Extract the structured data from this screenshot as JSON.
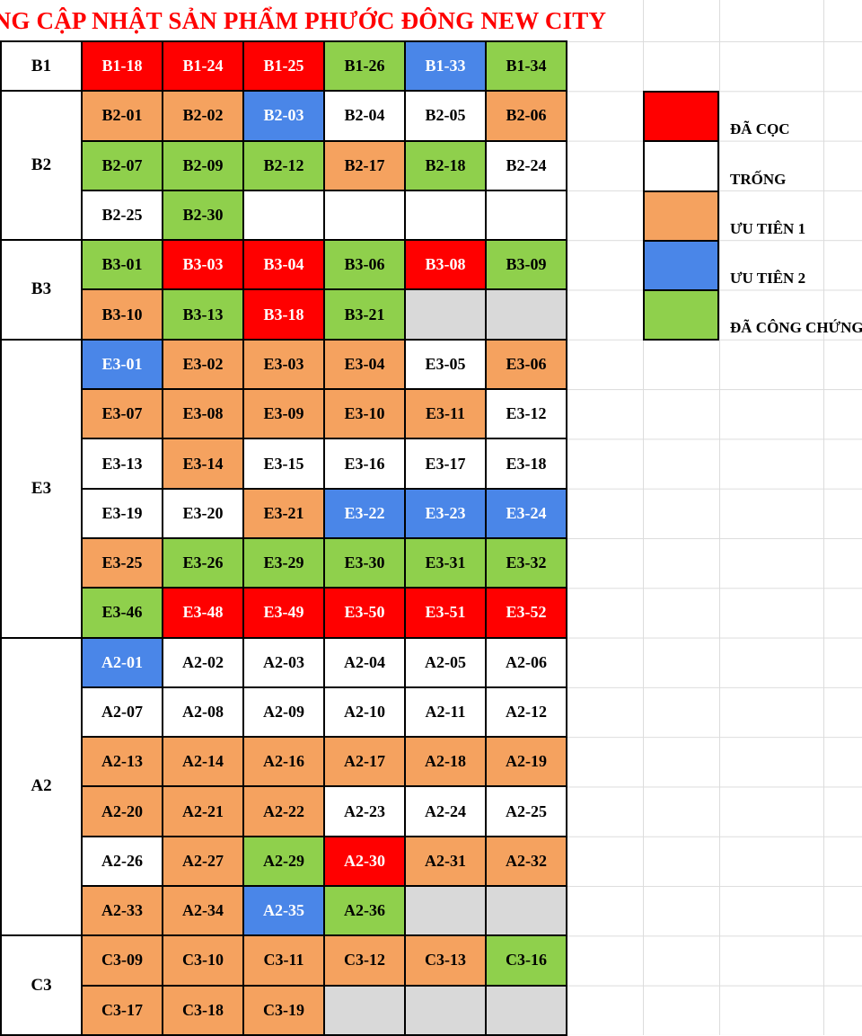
{
  "title": "BẢNG CẬP NHẬT SẢN PHẨM PHƯỚC ĐÔNG NEW CITY",
  "colors": {
    "title": "#FF0000",
    "gridline": "#DCDCDC",
    "table_border": "#000000"
  },
  "statuses": {
    "da_coc": {
      "label": "ĐÃ CỌC",
      "color": "#FF0000",
      "text": "#FFFFFF"
    },
    "trong": {
      "label": "TRỐNG",
      "color": "#FFFFFF",
      "text": "#000000"
    },
    "uu_tien_1": {
      "label": "ƯU TIÊN 1",
      "color": "#F5A25F",
      "text": "#000000"
    },
    "uu_tien_2": {
      "label": "ƯU TIÊN 2",
      "color": "#4A86E8",
      "text": "#FFFFFF"
    },
    "da_cong_chung": {
      "label": "ĐÃ CÔNG CHỨNG",
      "color": "#8FD04C",
      "text": "#000000"
    },
    "na": {
      "label": "",
      "color": "#D9D9D9",
      "text": "#000000"
    }
  },
  "legend": {
    "items": [
      {
        "status": "da_coc",
        "label": "ĐÃ CỌC"
      },
      {
        "status": "trong",
        "label": "TRỐNG"
      },
      {
        "status": "uu_tien_1",
        "label": "ƯU TIÊN 1"
      },
      {
        "status": "uu_tien_2",
        "label": "ƯU TIÊN 2"
      },
      {
        "status": "da_cong_chung",
        "label": "ĐÃ CÔNG CHỨNG"
      }
    ]
  },
  "sections": [
    {
      "name": "B1",
      "rows": [
        [
          {
            "label": "B1-18",
            "status": "da_coc"
          },
          {
            "label": "B1-24",
            "status": "da_coc"
          },
          {
            "label": "B1-25",
            "status": "da_coc"
          },
          {
            "label": "B1-26",
            "status": "da_cong_chung"
          },
          {
            "label": "B1-33",
            "status": "uu_tien_2"
          },
          {
            "label": "B1-34",
            "status": "da_cong_chung"
          }
        ]
      ]
    },
    {
      "name": "B2",
      "rows": [
        [
          {
            "label": "B2-01",
            "status": "uu_tien_1"
          },
          {
            "label": "B2-02",
            "status": "uu_tien_1"
          },
          {
            "label": "B2-03",
            "status": "uu_tien_2"
          },
          {
            "label": "B2-04",
            "status": "trong"
          },
          {
            "label": "B2-05",
            "status": "trong"
          },
          {
            "label": "B2-06",
            "status": "uu_tien_1"
          }
        ],
        [
          {
            "label": "B2-07",
            "status": "da_cong_chung"
          },
          {
            "label": "B2-09",
            "status": "da_cong_chung"
          },
          {
            "label": "B2-12",
            "status": "da_cong_chung"
          },
          {
            "label": "B2-17",
            "status": "uu_tien_1"
          },
          {
            "label": "B2-18",
            "status": "da_cong_chung"
          },
          {
            "label": "B2-24",
            "status": "trong"
          }
        ],
        [
          {
            "label": "B2-25",
            "status": "trong"
          },
          {
            "label": "B2-30",
            "status": "da_cong_chung"
          },
          {
            "label": "",
            "status": "trong"
          },
          {
            "label": "",
            "status": "trong"
          },
          {
            "label": "",
            "status": "trong"
          },
          {
            "label": "",
            "status": "trong"
          }
        ]
      ]
    },
    {
      "name": "B3",
      "rows": [
        [
          {
            "label": "B3-01",
            "status": "da_cong_chung"
          },
          {
            "label": "B3-03",
            "status": "da_coc"
          },
          {
            "label": "B3-04",
            "status": "da_coc"
          },
          {
            "label": "B3-06",
            "status": "da_cong_chung"
          },
          {
            "label": "B3-08",
            "status": "da_coc"
          },
          {
            "label": "B3-09",
            "status": "da_cong_chung"
          }
        ],
        [
          {
            "label": "B3-10",
            "status": "uu_tien_1"
          },
          {
            "label": "B3-13",
            "status": "da_cong_chung"
          },
          {
            "label": "B3-18",
            "status": "da_coc"
          },
          {
            "label": "B3-21",
            "status": "da_cong_chung"
          },
          {
            "label": "",
            "status": "na"
          },
          {
            "label": "",
            "status": "na"
          }
        ]
      ]
    },
    {
      "name": "E3",
      "rows": [
        [
          {
            "label": "E3-01",
            "status": "uu_tien_2"
          },
          {
            "label": "E3-02",
            "status": "uu_tien_1"
          },
          {
            "label": "E3-03",
            "status": "uu_tien_1"
          },
          {
            "label": "E3-04",
            "status": "uu_tien_1"
          },
          {
            "label": "E3-05",
            "status": "trong"
          },
          {
            "label": "E3-06",
            "status": "uu_tien_1"
          }
        ],
        [
          {
            "label": "E3-07",
            "status": "uu_tien_1"
          },
          {
            "label": "E3-08",
            "status": "uu_tien_1"
          },
          {
            "label": "E3-09",
            "status": "uu_tien_1"
          },
          {
            "label": "E3-10",
            "status": "uu_tien_1"
          },
          {
            "label": "E3-11",
            "status": "uu_tien_1"
          },
          {
            "label": "E3-12",
            "status": "trong"
          }
        ],
        [
          {
            "label": "E3-13",
            "status": "trong"
          },
          {
            "label": "E3-14",
            "status": "uu_tien_1"
          },
          {
            "label": "E3-15",
            "status": "trong"
          },
          {
            "label": "E3-16",
            "status": "trong"
          },
          {
            "label": "E3-17",
            "status": "trong"
          },
          {
            "label": "E3-18",
            "status": "trong"
          }
        ],
        [
          {
            "label": "E3-19",
            "status": "trong"
          },
          {
            "label": "E3-20",
            "status": "trong"
          },
          {
            "label": "E3-21",
            "status": "uu_tien_1"
          },
          {
            "label": "E3-22",
            "status": "uu_tien_2"
          },
          {
            "label": "E3-23",
            "status": "uu_tien_2"
          },
          {
            "label": "E3-24",
            "status": "uu_tien_2"
          }
        ],
        [
          {
            "label": "E3-25",
            "status": "uu_tien_1"
          },
          {
            "label": "E3-26",
            "status": "da_cong_chung"
          },
          {
            "label": "E3-29",
            "status": "da_cong_chung"
          },
          {
            "label": "E3-30",
            "status": "da_cong_chung"
          },
          {
            "label": "E3-31",
            "status": "da_cong_chung"
          },
          {
            "label": "E3-32",
            "status": "da_cong_chung"
          }
        ],
        [
          {
            "label": "E3-46",
            "status": "da_cong_chung"
          },
          {
            "label": "E3-48",
            "status": "da_coc"
          },
          {
            "label": "E3-49",
            "status": "da_coc"
          },
          {
            "label": "E3-50",
            "status": "da_coc"
          },
          {
            "label": "E3-51",
            "status": "da_coc"
          },
          {
            "label": "E3-52",
            "status": "da_coc"
          }
        ]
      ]
    },
    {
      "name": "A2",
      "rows": [
        [
          {
            "label": "A2-01",
            "status": "uu_tien_2"
          },
          {
            "label": "A2-02",
            "status": "trong"
          },
          {
            "label": "A2-03",
            "status": "trong"
          },
          {
            "label": "A2-04",
            "status": "trong"
          },
          {
            "label": "A2-05",
            "status": "trong"
          },
          {
            "label": "A2-06",
            "status": "trong"
          }
        ],
        [
          {
            "label": "A2-07",
            "status": "trong"
          },
          {
            "label": "A2-08",
            "status": "trong"
          },
          {
            "label": "A2-09",
            "status": "trong"
          },
          {
            "label": "A2-10",
            "status": "trong"
          },
          {
            "label": "A2-11",
            "status": "trong"
          },
          {
            "label": "A2-12",
            "status": "trong"
          }
        ],
        [
          {
            "label": "A2-13",
            "status": "uu_tien_1"
          },
          {
            "label": "A2-14",
            "status": "uu_tien_1"
          },
          {
            "label": "A2-16",
            "status": "uu_tien_1"
          },
          {
            "label": "A2-17",
            "status": "uu_tien_1"
          },
          {
            "label": "A2-18",
            "status": "uu_tien_1"
          },
          {
            "label": "A2-19",
            "status": "uu_tien_1"
          }
        ],
        [
          {
            "label": "A2-20",
            "status": "uu_tien_1"
          },
          {
            "label": "A2-21",
            "status": "uu_tien_1"
          },
          {
            "label": "A2-22",
            "status": "uu_tien_1"
          },
          {
            "label": "A2-23",
            "status": "trong"
          },
          {
            "label": "A2-24",
            "status": "trong"
          },
          {
            "label": "A2-25",
            "status": "trong"
          }
        ],
        [
          {
            "label": "A2-26",
            "status": "trong"
          },
          {
            "label": "A2-27",
            "status": "uu_tien_1"
          },
          {
            "label": "A2-29",
            "status": "da_cong_chung"
          },
          {
            "label": "A2-30",
            "status": "da_coc"
          },
          {
            "label": "A2-31",
            "status": "uu_tien_1"
          },
          {
            "label": "A2-32",
            "status": "uu_tien_1"
          }
        ],
        [
          {
            "label": "A2-33",
            "status": "uu_tien_1"
          },
          {
            "label": "A2-34",
            "status": "uu_tien_1"
          },
          {
            "label": "A2-35",
            "status": "uu_tien_2"
          },
          {
            "label": "A2-36",
            "status": "da_cong_chung"
          },
          {
            "label": "",
            "status": "na"
          },
          {
            "label": "",
            "status": "na"
          }
        ]
      ]
    },
    {
      "name": "C3",
      "rows": [
        [
          {
            "label": "C3-09",
            "status": "uu_tien_1"
          },
          {
            "label": "C3-10",
            "status": "uu_tien_1"
          },
          {
            "label": "C3-11",
            "status": "uu_tien_1"
          },
          {
            "label": "C3-12",
            "status": "uu_tien_1"
          },
          {
            "label": "C3-13",
            "status": "uu_tien_1"
          },
          {
            "label": "C3-16",
            "status": "da_cong_chung"
          }
        ],
        [
          {
            "label": "C3-17",
            "status": "uu_tien_1"
          },
          {
            "label": "C3-18",
            "status": "uu_tien_1"
          },
          {
            "label": "C3-19",
            "status": "uu_tien_1"
          },
          {
            "label": "",
            "status": "na"
          },
          {
            "label": "",
            "status": "na"
          },
          {
            "label": "",
            "status": "na"
          }
        ]
      ]
    }
  ]
}
